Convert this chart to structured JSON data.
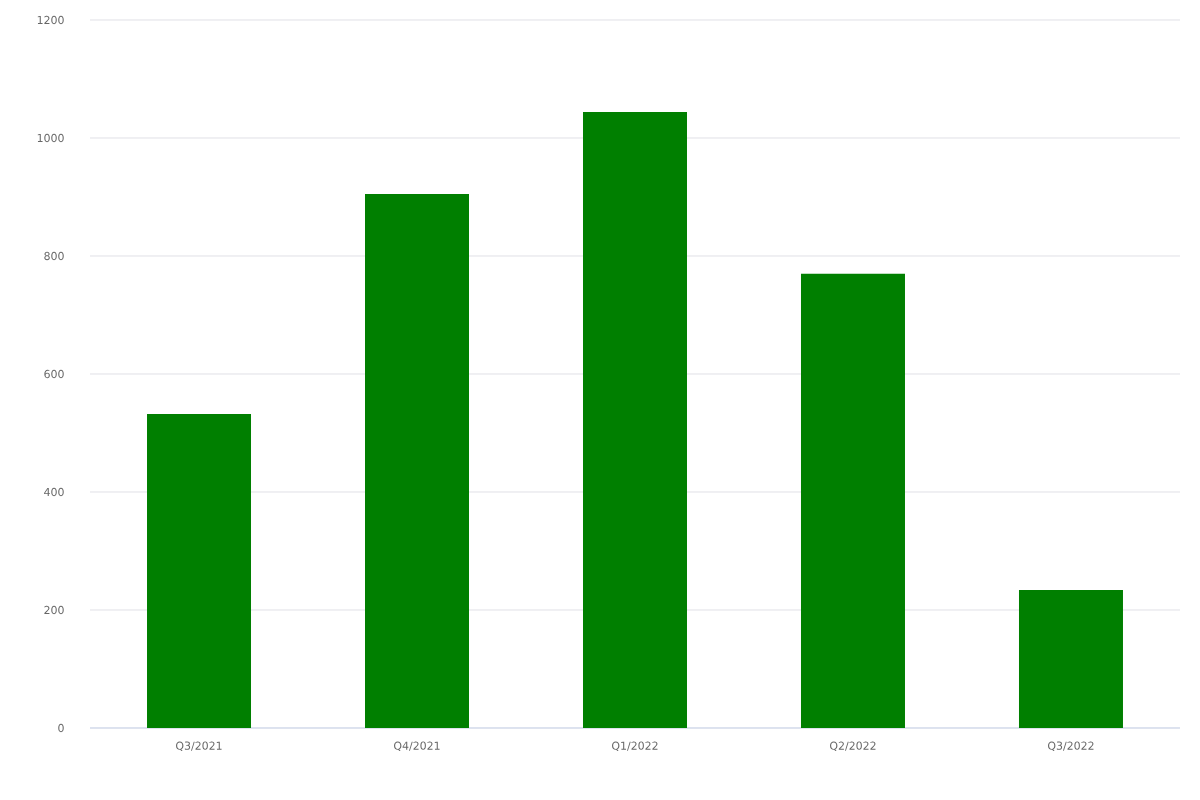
{
  "chart_data": {
    "type": "bar",
    "categories": [
      "Q3/2021",
      "Q4/2021",
      "Q1/2022",
      "Q2/2022",
      "Q3/2022"
    ],
    "values": [
      532,
      905,
      1044,
      770,
      234
    ],
    "color": "#007f00",
    "ylim": [
      0,
      1200
    ],
    "yticks": [
      0,
      200,
      400,
      600,
      800,
      1000,
      1200
    ],
    "grid": "y"
  }
}
